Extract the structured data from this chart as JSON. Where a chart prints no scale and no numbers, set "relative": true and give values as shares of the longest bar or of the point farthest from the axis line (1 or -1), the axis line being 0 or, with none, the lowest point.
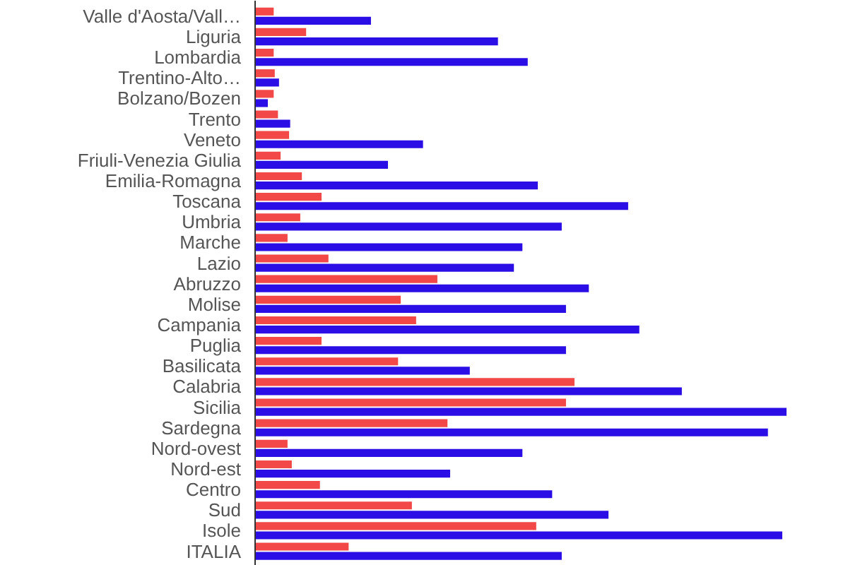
{
  "chart_data": {
    "type": "bar",
    "orientation": "horizontal",
    "relative": true,
    "categories": [
      "Valle d'Aosta/Vall…",
      "Liguria",
      "Lombardia",
      "Trentino-Alto…",
      "Bolzano/Bozen",
      "Trento",
      "Veneto",
      "Friuli-Venezia Giulia",
      "Emilia-Romagna",
      "Toscana",
      "Umbria",
      "Marche",
      "Lazio",
      "Abruzzo",
      "Molise",
      "Campania",
      "Puglia",
      "Basilicata",
      "Calabria",
      "Sicilia",
      "Sardegna",
      "Nord-ovest",
      "Nord-est",
      "Centro",
      "Sud",
      "Isole",
      "ITALIA"
    ],
    "series": [
      {
        "color": "#f24848",
        "values": [
          0.035,
          0.096,
          0.035,
          0.037,
          0.035,
          0.043,
          0.064,
          0.048,
          0.088,
          0.125,
          0.085,
          0.061,
          0.138,
          0.343,
          0.274,
          0.303,
          0.125,
          0.269,
          0.601,
          0.585,
          0.362,
          0.061,
          0.069,
          0.122,
          0.295,
          0.529,
          0.176
        ]
      },
      {
        "color": "#2b0ee6",
        "values": [
          0.218,
          0.457,
          0.513,
          0.045,
          0.024,
          0.066,
          0.316,
          0.25,
          0.532,
          0.702,
          0.577,
          0.503,
          0.487,
          0.628,
          0.585,
          0.723,
          0.585,
          0.404,
          0.803,
          1,
          0.965,
          0.503,
          0.367,
          0.559,
          0.665,
          0.992,
          0.577
        ]
      }
    ]
  }
}
